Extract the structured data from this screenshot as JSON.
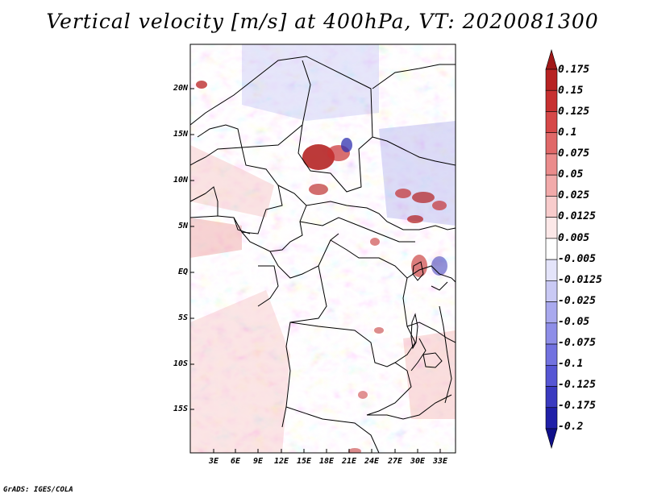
{
  "title": "Vertical velocity [m/s] at 400hPa, VT: 2020081300",
  "footer": "GrADS: IGES/COLA",
  "lat_labels": [
    "20N",
    "15N",
    "10N",
    "5N",
    "EQ",
    "5S",
    "10S",
    "15S"
  ],
  "lon_labels": [
    "3E",
    "6E",
    "9E",
    "12E",
    "15E",
    "18E",
    "21E",
    "24E",
    "27E",
    "30E",
    "33E"
  ],
  "colorbar": {
    "levels": [
      "0.175",
      "0.15",
      "0.125",
      "0.1",
      "0.075",
      "0.05",
      "0.025",
      "0.0125",
      "0.005",
      "-0.005",
      "-0.0125",
      "-0.025",
      "-0.05",
      "-0.075",
      "-0.1",
      "-0.125",
      "-0.175",
      "-0.2"
    ],
    "colors": [
      "#a01818",
      "#b72222",
      "#c73030",
      "#d64848",
      "#e06868",
      "#eb8c8c",
      "#f2aaaa",
      "#f8cccc",
      "#fce8e8",
      "#ffffff",
      "#e4e4fa",
      "#c9c9f4",
      "#a9a9ee",
      "#8e8ee8",
      "#7272e0",
      "#5656d4",
      "#3a3ac0",
      "#2020a8",
      "#10108a"
    ]
  },
  "legend_colors": {
    "positive_strong": "#b01818",
    "positive_weak": "#f4b4b4",
    "neutral": "#ffffff",
    "negative_weak": "#c4c4f2",
    "negative_strong": "#5050d0"
  }
}
